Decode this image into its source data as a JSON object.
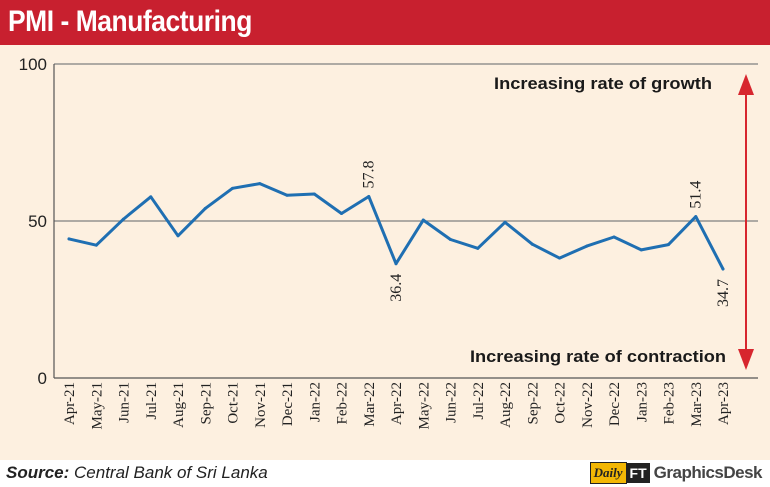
{
  "header": {
    "title": "PMI - Manufacturing"
  },
  "footer": {
    "source_label": "Source:",
    "source_text": " Central Bank of Sri Lanka",
    "brand_daily": "Daily",
    "brand_ft": "FT",
    "brand_desk": "GraphicsDesk"
  },
  "colors": {
    "header": "#c8202f",
    "panel": "#fdf0e0",
    "line": "#1f6fb2",
    "arrow": "#d7262e"
  },
  "chart_data": {
    "type": "line",
    "title": "PMI - Manufacturing",
    "categories": [
      "Apr-21",
      "May-21",
      "Jun-21",
      "Jul-21",
      "Aug-21",
      "Sep-21",
      "Oct-21",
      "Nov-21",
      "Dec-21",
      "Jan-22",
      "Feb-22",
      "Mar-22",
      "Apr-22",
      "May-22",
      "Jun-22",
      "Jul-22",
      "Aug-22",
      "Sep-22",
      "Oct-22",
      "Nov-22",
      "Dec-22",
      "Jan-23",
      "Feb-23",
      "Mar-23",
      "Apr-23"
    ],
    "values": [
      44.3,
      42.3,
      50.6,
      57.7,
      45.3,
      54.0,
      60.4,
      61.9,
      58.2,
      58.6,
      52.4,
      57.8,
      36.4,
      50.3,
      44.1,
      41.3,
      49.6,
      42.6,
      38.2,
      42.0,
      44.9,
      40.8,
      42.5,
      51.4,
      34.7
    ],
    "yticks": [
      0,
      50,
      100
    ],
    "ylim": [
      0,
      100
    ],
    "reference_line": 50,
    "data_labels": [
      {
        "index": 11,
        "text": "57.8",
        "position": "above"
      },
      {
        "index": 12,
        "text": "36.4",
        "position": "below"
      },
      {
        "index": 23,
        "text": "51.4",
        "position": "above"
      },
      {
        "index": 24,
        "text": "34.7",
        "position": "below"
      }
    ],
    "annotations": {
      "top": "Increasing rate of growth",
      "bottom": "Increasing rate of contraction"
    }
  }
}
